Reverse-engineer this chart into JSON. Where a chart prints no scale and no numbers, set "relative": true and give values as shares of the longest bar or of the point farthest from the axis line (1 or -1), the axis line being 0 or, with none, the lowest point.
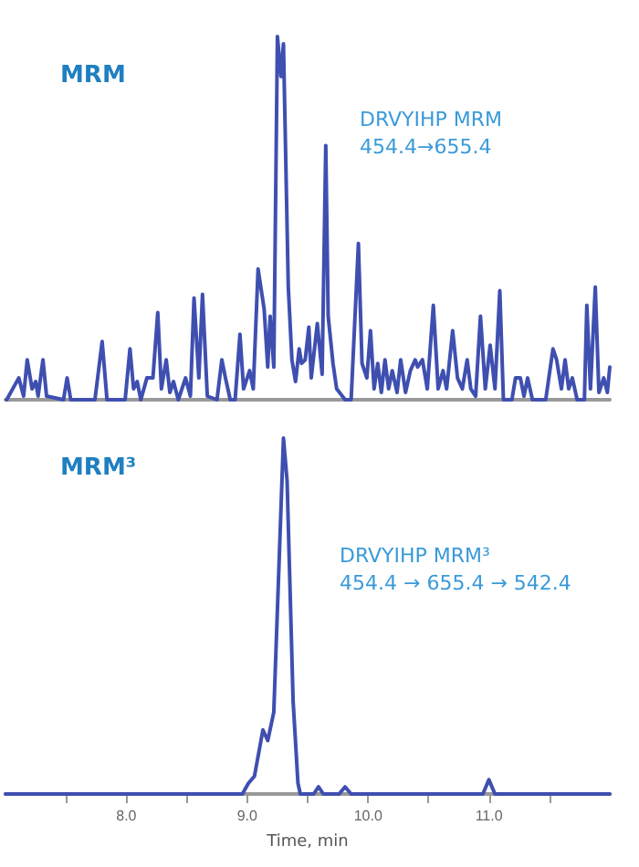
{
  "chart_data": [
    {
      "type": "line",
      "title": "MRM",
      "annotations": [
        "DRVYIHP MRM",
        "454.4→655.4"
      ],
      "relative": true,
      "tick_labels": false,
      "marker": "none",
      "line_style": "solid",
      "color": "#3f4fb0",
      "xlim": [
        7.0,
        12.0
      ],
      "x": [
        7.01,
        7.11,
        7.15,
        7.18,
        7.22,
        7.25,
        7.27,
        7.31,
        7.34,
        7.48,
        7.51,
        7.54,
        7.74,
        7.8,
        7.84,
        7.99,
        8.03,
        8.06,
        8.09,
        8.12,
        8.17,
        8.22,
        8.26,
        8.29,
        8.33,
        8.36,
        8.39,
        8.43,
        8.49,
        8.53,
        8.56,
        8.6,
        8.63,
        8.67,
        8.75,
        8.79,
        8.82,
        8.86,
        8.9,
        8.94,
        8.97,
        9.02,
        9.05,
        9.09,
        9.14,
        9.17,
        9.19,
        9.22,
        9.25,
        9.28,
        9.3,
        9.34,
        9.37,
        9.4,
        9.43,
        9.45,
        9.48,
        9.51,
        9.53,
        9.58,
        9.62,
        9.65,
        9.67,
        9.71,
        9.74,
        9.81,
        9.86,
        9.92,
        9.95,
        9.99,
        10.02,
        10.05,
        10.08,
        10.11,
        10.14,
        10.17,
        10.2,
        10.24,
        10.27,
        10.31,
        10.35,
        10.39,
        10.41,
        10.45,
        10.49,
        10.54,
        10.58,
        10.62,
        10.65,
        10.7,
        10.74,
        10.78,
        10.82,
        10.85,
        10.89,
        10.93,
        10.97,
        11.01,
        11.05,
        11.09,
        11.12,
        11.19,
        11.22,
        11.26,
        11.29,
        11.32,
        11.36,
        11.47,
        11.53,
        11.56,
        11.6,
        11.63,
        11.66,
        11.69,
        11.73,
        11.79,
        11.81,
        11.84,
        11.88,
        11.91,
        11.95,
        11.98,
        12.0
      ],
      "values": [
        0,
        0.06,
        0.01,
        0.11,
        0.03,
        0.05,
        0.01,
        0.11,
        0.01,
        0,
        0.06,
        0,
        0,
        0.16,
        0,
        0,
        0.14,
        0.03,
        0.05,
        0,
        0.06,
        0.06,
        0.24,
        0.03,
        0.11,
        0.02,
        0.05,
        0,
        0.06,
        0.01,
        0.28,
        0.06,
        0.29,
        0.01,
        0,
        0.11,
        0.06,
        0,
        0,
        0.18,
        0.03,
        0.08,
        0.03,
        0.36,
        0.25,
        0.09,
        0.23,
        0.09,
        1,
        0.89,
        0.98,
        0.31,
        0.11,
        0.05,
        0.14,
        0.1,
        0.11,
        0.2,
        0.06,
        0.21,
        0.07,
        0.7,
        0.23,
        0.1,
        0.03,
        0,
        0,
        0.43,
        0.1,
        0.06,
        0.19,
        0.03,
        0.1,
        0.02,
        0.11,
        0.03,
        0.08,
        0.02,
        0.11,
        0.02,
        0.08,
        0.11,
        0.09,
        0.11,
        0.03,
        0.26,
        0.03,
        0.08,
        0.03,
        0.19,
        0.06,
        0.03,
        0.11,
        0.03,
        0.01,
        0.23,
        0.03,
        0.15,
        0.03,
        0.3,
        0,
        0,
        0.06,
        0.06,
        0.01,
        0.06,
        0,
        0,
        0.14,
        0.11,
        0.03,
        0.11,
        0.03,
        0.06,
        0,
        0,
        0.26,
        0.03,
        0.31,
        0.02,
        0.06,
        0.02,
        0.09
      ]
    },
    {
      "type": "line",
      "title": "MRM³",
      "annotations": [
        "DRVYIHP MRM³",
        "454.4 → 655.4 → 542.4"
      ],
      "xlabel": "Time, min",
      "relative": true,
      "tick_labels": "x",
      "marker": "none",
      "line_style": "solid",
      "color": "#3f4fb0",
      "xlim": [
        7.0,
        12.0
      ],
      "xticks": [
        {
          "value": 7.5,
          "label": null
        },
        {
          "value": 8,
          "label": "8.0"
        },
        {
          "value": 8.5,
          "label": null
        },
        {
          "value": 9,
          "label": "9.0"
        },
        {
          "value": 9.5,
          "label": null
        },
        {
          "value": 10,
          "label": "10.0"
        },
        {
          "value": 10.5,
          "label": null
        },
        {
          "value": 11,
          "label": "11.0"
        },
        {
          "value": 11.5,
          "label": null
        }
      ],
      "x": [
        7.0,
        8.96,
        9.01,
        9.06,
        9.13,
        9.17,
        9.22,
        9.27,
        9.3,
        9.33,
        9.38,
        9.42,
        9.44,
        9.55,
        9.59,
        9.63,
        9.76,
        9.81,
        9.86,
        10.95,
        11.0,
        11.05,
        12.0
      ],
      "values": [
        0,
        0,
        0.03,
        0.05,
        0.18,
        0.15,
        0.23,
        0.71,
        1,
        0.88,
        0.26,
        0.03,
        0,
        0,
        0.02,
        0,
        0,
        0.02,
        0,
        0,
        0.04,
        0,
        0
      ]
    }
  ]
}
